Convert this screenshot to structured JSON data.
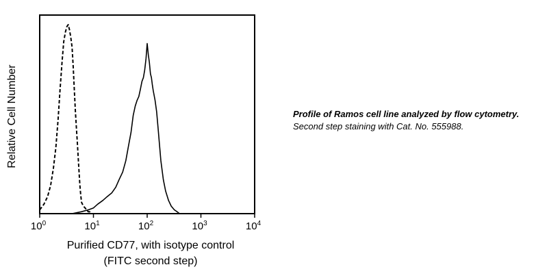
{
  "chart_data": {
    "type": "histogram",
    "title": "",
    "xlabel_line1": "Purified CD77, with isotype control",
    "xlabel_line2": "(FITC second step)",
    "ylabel": "Relative Cell Number",
    "x_scale": "log",
    "xlim": [
      1,
      10000
    ],
    "ylim": [
      0,
      100
    ],
    "x_ticks": [
      {
        "base": "10",
        "exp": "0",
        "value": 1
      },
      {
        "base": "10",
        "exp": "1",
        "value": 10
      },
      {
        "base": "10",
        "exp": "2",
        "value": 100
      },
      {
        "base": "10",
        "exp": "3",
        "value": 1000
      },
      {
        "base": "10",
        "exp": "4",
        "value": 10000
      }
    ],
    "grid": false,
    "legend": "none",
    "series": [
      {
        "style": "dashed",
        "color": "#000000",
        "x": [
          1.0,
          1.2,
          1.4,
          1.6,
          1.8,
          2.0,
          2.2,
          2.4,
          2.6,
          2.8,
          3.0,
          3.2,
          3.4,
          3.6,
          3.8,
          4.0,
          4.2,
          4.4,
          4.6,
          4.8,
          5.0,
          5.2,
          5.4,
          5.6,
          5.8,
          6.0,
          6.5,
          7.0,
          7.5,
          8.0,
          8.5,
          9.0,
          9.5,
          10.0
        ],
        "y": [
          2,
          5,
          9,
          15,
          24,
          35,
          50,
          66,
          80,
          91,
          96,
          99,
          100,
          97,
          93,
          88,
          78,
          66,
          55,
          46,
          38,
          30,
          22,
          15,
          10,
          6,
          4,
          3,
          2,
          1,
          1,
          0,
          0,
          0
        ]
      },
      {
        "style": "solid",
        "color": "#000000",
        "x": [
          4,
          6,
          8,
          10,
          12,
          15,
          18,
          22,
          26,
          30,
          35,
          40,
          45,
          50,
          55,
          60,
          65,
          70,
          75,
          80,
          85,
          90,
          95,
          100,
          105,
          110,
          115,
          120,
          125,
          130,
          140,
          150,
          160,
          170,
          180,
          200,
          220,
          250,
          280,
          320,
          360,
          400,
          450,
          500
        ],
        "y": [
          0,
          1,
          2,
          3,
          5,
          7,
          9,
          11,
          14,
          18,
          22,
          28,
          36,
          43,
          52,
          57,
          60,
          62,
          66,
          70,
          72,
          76,
          82,
          90,
          84,
          80,
          74,
          72,
          68,
          65,
          60,
          54,
          45,
          36,
          28,
          18,
          12,
          7,
          4,
          2,
          1,
          0,
          0,
          0
        ]
      }
    ]
  },
  "caption": {
    "title": "Profile of Ramos cell line analyzed by flow cytometry.",
    "body": "Second step staining with Cat. No. 555988."
  }
}
